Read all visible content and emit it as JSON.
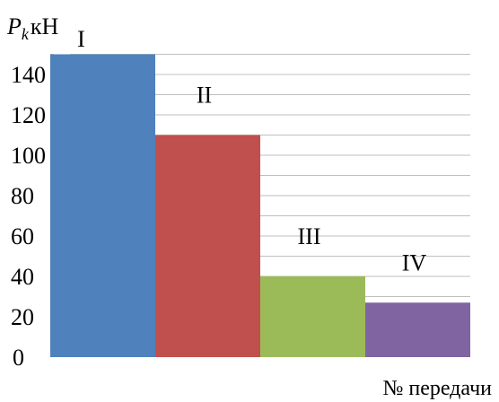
{
  "chart_data": {
    "type": "bar",
    "categories": [
      "I",
      "II",
      "III",
      "IV"
    ],
    "values": [
      150,
      110,
      40,
      27
    ],
    "colors": [
      "#4f81bd",
      "#c0504d",
      "#9bbb59",
      "#8064a2"
    ],
    "ylabel_symbol": "P",
    "ylabel_subscript": "k",
    "ylabel_unit": "кН",
    "xlabel": "№ передачи",
    "ylim": [
      0,
      160
    ],
    "yticks": [
      0,
      20,
      40,
      60,
      80,
      100,
      120,
      140
    ],
    "grid": true,
    "legend": "none"
  }
}
